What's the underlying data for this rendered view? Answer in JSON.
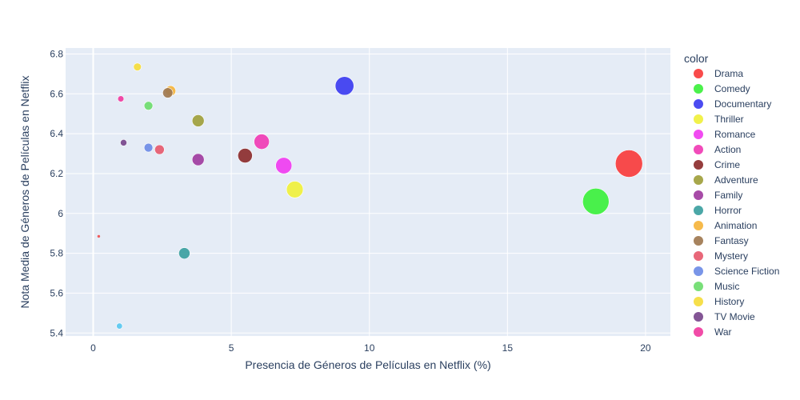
{
  "chart_data": {
    "type": "scatter",
    "xlabel": "Presencia de Géneros de Películas en Netflix (%)",
    "ylabel": "Nota Media de Géneros de Películas en Netflix",
    "xlim": [
      -1.0,
      20.9
    ],
    "ylim": [
      5.385,
      6.83
    ],
    "xticks": [
      0,
      5,
      10,
      15,
      20
    ],
    "xtick_labels": [
      "0",
      "5",
      "10",
      "15",
      "20"
    ],
    "yticks": [
      5.4,
      5.6,
      5.8,
      6,
      6.2,
      6.4,
      6.6,
      6.8
    ],
    "ytick_labels": [
      "5.4",
      "5.6",
      "5.8",
      "6",
      "6.2",
      "6.4",
      "6.6",
      "6.8"
    ],
    "grid": true,
    "legend_title": "color",
    "legend_position": "right",
    "series": [
      {
        "name": "Drama",
        "color": "#f83c3c",
        "x": 19.4,
        "y": 6.25
      },
      {
        "name": "Comedy",
        "color": "#3cf03c",
        "x": 18.2,
        "y": 6.06
      },
      {
        "name": "Documentary",
        "color": "#3c3cf0",
        "x": 9.1,
        "y": 6.64
      },
      {
        "name": "Thriller",
        "color": "#f0f03c",
        "x": 7.3,
        "y": 6.12
      },
      {
        "name": "Romance",
        "color": "#f03cf0",
        "x": 6.9,
        "y": 6.24
      },
      {
        "name": "Action",
        "color": "#f03cb4",
        "x": 6.1,
        "y": 6.36
      },
      {
        "name": "Crime",
        "color": "#8c2d2d",
        "x": 5.5,
        "y": 6.29
      },
      {
        "name": "Adventure",
        "color": "#a0a03c",
        "x": 3.8,
        "y": 6.465
      },
      {
        "name": "Family",
        "color": "#a03ca0",
        "x": 3.8,
        "y": 6.27
      },
      {
        "name": "Horror",
        "color": "#3ca0a0",
        "x": 3.3,
        "y": 5.8
      },
      {
        "name": "Animation",
        "color": "#f5b43c",
        "x": 2.8,
        "y": 6.615
      },
      {
        "name": "Fantasy",
        "color": "#a07850",
        "x": 2.7,
        "y": 6.605
      },
      {
        "name": "Mystery",
        "color": "#e65a6e",
        "x": 2.4,
        "y": 6.32
      },
      {
        "name": "Science Fiction",
        "color": "#6e8ce6",
        "x": 2.0,
        "y": 6.33
      },
      {
        "name": "Music",
        "color": "#6edc6e",
        "x": 2.0,
        "y": 6.54
      },
      {
        "name": "History",
        "color": "#f5dc3c",
        "x": 1.6,
        "y": 6.735
      },
      {
        "name": "TV Movie",
        "color": "#78468c",
        "x": 1.1,
        "y": 6.355
      },
      {
        "name": "War",
        "color": "#f03ca0",
        "x": 1.0,
        "y": 6.575
      },
      {
        "name": "",
        "color": "#5ac8f0",
        "x": 0.95,
        "y": 5.435
      },
      {
        "name": "",
        "color": "#f05050",
        "x": 0.2,
        "y": 5.885
      }
    ]
  }
}
